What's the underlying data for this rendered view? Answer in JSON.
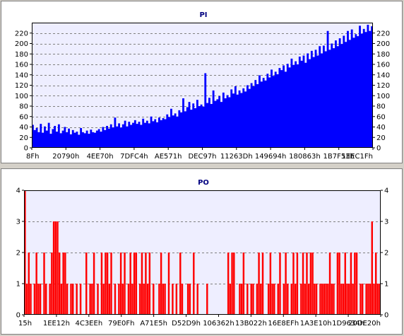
{
  "colors": {
    "page_background": "#d4d0c8",
    "panel_background": "#ffffff",
    "plot_background": "#eeeeff",
    "title": "#000080",
    "pi_series": "#0000ff",
    "po_series": "#ff0000",
    "grid": "#808080"
  },
  "chart_data": [
    {
      "type": "area",
      "title": "PI",
      "xlabel": "",
      "ylabel": "",
      "ylim": [
        0,
        240
      ],
      "yticks": [
        0,
        20,
        40,
        60,
        80,
        100,
        120,
        140,
        160,
        180,
        200,
        220
      ],
      "right_axis": true,
      "grid": true,
      "x_tick_labels": [
        "8Fh",
        "20790h",
        "4EE70h",
        "7DFC4h",
        "AE571h",
        "DEC97h",
        "11263Dh",
        "149694h",
        "180863h",
        "1B7F53h",
        "1EEC1Fh"
      ],
      "series": [
        {
          "color": "#0000ff",
          "values": [
            44,
            34,
            38,
            30,
            46,
            29,
            41,
            33,
            48,
            27,
            36,
            42,
            31,
            45,
            28,
            33,
            40,
            30,
            37,
            26,
            34,
            29,
            31,
            25,
            38,
            30,
            28,
            33,
            27,
            35,
            30,
            29,
            33,
            36,
            31,
            40,
            34,
            42,
            37,
            45,
            39,
            58,
            41,
            47,
            39,
            45,
            52,
            41,
            50,
            44,
            48,
            53,
            46,
            50,
            44,
            56,
            48,
            52,
            47,
            60,
            51,
            55,
            49,
            58,
            53,
            57,
            55,
            64,
            59,
            75,
            62,
            66,
            60,
            72,
            68,
            95,
            70,
            78,
            88,
            73,
            85,
            76,
            92,
            80,
            83,
            79,
            143,
            86,
            96,
            84,
            110,
            90,
            93,
            99,
            88,
            106,
            95,
            101,
            97,
            112,
            104,
            118,
            102,
            110,
            105,
            114,
            108,
            120,
            113,
            124,
            118,
            130,
            122,
            139,
            127,
            134,
            129,
            142,
            135,
            150,
            138,
            146,
            141,
            153,
            149,
            158,
            146,
            161,
            154,
            171,
            159,
            166,
            160,
            175,
            167,
            177,
            163,
            181,
            170,
            186,
            174,
            188,
            177,
            195,
            181,
            196,
            185,
            224,
            188,
            200,
            191,
            206,
            195,
            210,
            199,
            215,
            203,
            224,
            207,
            227,
            211,
            218,
            214,
            234,
            219,
            228,
            222,
            236,
            224,
            233
          ]
        }
      ]
    },
    {
      "type": "bar",
      "title": "PO",
      "xlabel": "",
      "ylabel": "",
      "ylim": [
        0,
        4
      ],
      "yticks": [
        0,
        1,
        2,
        3,
        4
      ],
      "right_axis": true,
      "grid": true,
      "x_tick_labels": [
        "15h",
        "1EE12h",
        "4C3EEh",
        "79E0Fh",
        "A71E5h",
        "D52D9h",
        "106362h",
        "13B022h",
        "16E8EFh",
        "1A3E10h",
        "1D9634h",
        "20DE20h"
      ],
      "series": [
        {
          "color": "#ff0000",
          "values": [
            4,
            1,
            2,
            1,
            0,
            1,
            2,
            1,
            1,
            0,
            2,
            1,
            0,
            1,
            2,
            3,
            3,
            3,
            2,
            1,
            2,
            2,
            1,
            0,
            1,
            1,
            0,
            1,
            0,
            1,
            0,
            0,
            2,
            0,
            1,
            1,
            2,
            0,
            1,
            0,
            2,
            1,
            2,
            2,
            1,
            2,
            0,
            1,
            0,
            1,
            2,
            1,
            2,
            0,
            1,
            2,
            1,
            2,
            2,
            0,
            1,
            2,
            1,
            2,
            1,
            2,
            0,
            1,
            0,
            0,
            1,
            2,
            1,
            1,
            0,
            2,
            0,
            1,
            0,
            1,
            0,
            2,
            1,
            0,
            0,
            1,
            1,
            0,
            2,
            0,
            1,
            0,
            0,
            0,
            0,
            1,
            0,
            0,
            0,
            0,
            0,
            0,
            0,
            0,
            0,
            0,
            2,
            1,
            2,
            2,
            0,
            0,
            1,
            1,
            2,
            0,
            1,
            0,
            1,
            1,
            0,
            1,
            2,
            1,
            2,
            0,
            0,
            1,
            2,
            1,
            1,
            0,
            1,
            2,
            0,
            1,
            2,
            1,
            0,
            1,
            2,
            1,
            2,
            0,
            1,
            2,
            1,
            2,
            1,
            2,
            2,
            1,
            1,
            0,
            1,
            1,
            1,
            1,
            1,
            2,
            1,
            1,
            0,
            2,
            2,
            1,
            1,
            2,
            1,
            1,
            2,
            1,
            2,
            2,
            0,
            1,
            1,
            0,
            1,
            1,
            1,
            3,
            1,
            2,
            1,
            1
          ]
        }
      ]
    }
  ]
}
